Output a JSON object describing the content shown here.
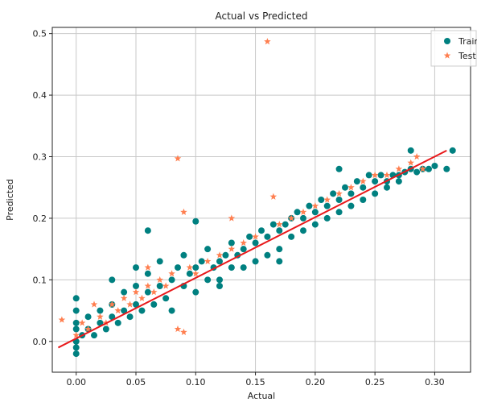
{
  "chart_data": {
    "type": "scatter",
    "title": "Actual vs Predicted",
    "xlabel": "Actual",
    "ylabel": "Predicted",
    "xlim": [
      -0.02,
      0.33
    ],
    "ylim": [
      -0.05,
      0.51
    ],
    "x_ticks": [
      "0.00",
      "0.05",
      "0.10",
      "0.15",
      "0.20",
      "0.25",
      "0.30"
    ],
    "x_tick_values": [
      0.0,
      0.05,
      0.1,
      0.15,
      0.2,
      0.25,
      0.3
    ],
    "y_ticks": [
      "0.0",
      "0.1",
      "0.2",
      "0.3",
      "0.4",
      "0.5"
    ],
    "y_tick_values": [
      0.0,
      0.1,
      0.2,
      0.3,
      0.4,
      0.5
    ],
    "grid": true,
    "legend_position": "top-right",
    "series": [
      {
        "name": "Train",
        "marker": "circle",
        "color": "#008080",
        "points": [
          [
            0.0,
            0.0
          ],
          [
            0.0,
            0.02
          ],
          [
            0.0,
            -0.02
          ],
          [
            0.0,
            0.05
          ],
          [
            0.0,
            0.07
          ],
          [
            0.0,
            -0.01
          ],
          [
            0.0,
            0.03
          ],
          [
            0.005,
            0.01
          ],
          [
            0.01,
            0.02
          ],
          [
            0.01,
            0.04
          ],
          [
            0.015,
            0.01
          ],
          [
            0.02,
            0.03
          ],
          [
            0.02,
            0.05
          ],
          [
            0.025,
            0.02
          ],
          [
            0.03,
            0.04
          ],
          [
            0.03,
            0.06
          ],
          [
            0.035,
            0.03
          ],
          [
            0.04,
            0.05
          ],
          [
            0.04,
            0.08
          ],
          [
            0.045,
            0.04
          ],
          [
            0.05,
            0.06
          ],
          [
            0.05,
            0.09
          ],
          [
            0.05,
            0.12
          ],
          [
            0.055,
            0.05
          ],
          [
            0.06,
            0.08
          ],
          [
            0.06,
            0.11
          ],
          [
            0.065,
            0.06
          ],
          [
            0.07,
            0.09
          ],
          [
            0.07,
            0.13
          ],
          [
            0.075,
            0.07
          ],
          [
            0.08,
            0.1
          ],
          [
            0.08,
            0.05
          ],
          [
            0.085,
            0.12
          ],
          [
            0.09,
            0.09
          ],
          [
            0.09,
            0.14
          ],
          [
            0.095,
            0.11
          ],
          [
            0.1,
            0.12
          ],
          [
            0.1,
            0.08
          ],
          [
            0.1,
            0.195
          ],
          [
            0.105,
            0.13
          ],
          [
            0.11,
            0.1
          ],
          [
            0.11,
            0.15
          ],
          [
            0.115,
            0.12
          ],
          [
            0.12,
            0.13
          ],
          [
            0.12,
            0.1
          ],
          [
            0.125,
            0.14
          ],
          [
            0.13,
            0.16
          ],
          [
            0.13,
            0.12
          ],
          [
            0.135,
            0.14
          ],
          [
            0.14,
            0.15
          ],
          [
            0.14,
            0.12
          ],
          [
            0.145,
            0.17
          ],
          [
            0.15,
            0.16
          ],
          [
            0.15,
            0.13
          ],
          [
            0.155,
            0.18
          ],
          [
            0.16,
            0.17
          ],
          [
            0.16,
            0.14
          ],
          [
            0.165,
            0.19
          ],
          [
            0.17,
            0.18
          ],
          [
            0.17,
            0.15
          ],
          [
            0.175,
            0.19
          ],
          [
            0.18,
            0.2
          ],
          [
            0.18,
            0.17
          ],
          [
            0.185,
            0.21
          ],
          [
            0.19,
            0.2
          ],
          [
            0.19,
            0.18
          ],
          [
            0.195,
            0.22
          ],
          [
            0.2,
            0.21
          ],
          [
            0.2,
            0.19
          ],
          [
            0.205,
            0.23
          ],
          [
            0.21,
            0.22
          ],
          [
            0.21,
            0.2
          ],
          [
            0.215,
            0.24
          ],
          [
            0.22,
            0.23
          ],
          [
            0.22,
            0.21
          ],
          [
            0.225,
            0.25
          ],
          [
            0.23,
            0.24
          ],
          [
            0.23,
            0.22
          ],
          [
            0.235,
            0.26
          ],
          [
            0.24,
            0.25
          ],
          [
            0.24,
            0.23
          ],
          [
            0.245,
            0.27
          ],
          [
            0.25,
            0.26
          ],
          [
            0.25,
            0.24
          ],
          [
            0.255,
            0.27
          ],
          [
            0.26,
            0.26
          ],
          [
            0.26,
            0.25
          ],
          [
            0.265,
            0.27
          ],
          [
            0.27,
            0.27
          ],
          [
            0.27,
            0.26
          ],
          [
            0.275,
            0.275
          ],
          [
            0.28,
            0.31
          ],
          [
            0.28,
            0.28
          ],
          [
            0.285,
            0.275
          ],
          [
            0.29,
            0.28
          ],
          [
            0.295,
            0.28
          ],
          [
            0.3,
            0.285
          ],
          [
            0.31,
            0.28
          ],
          [
            0.315,
            0.31
          ],
          [
            0.06,
            0.18
          ],
          [
            0.03,
            0.1
          ],
          [
            0.12,
            0.09
          ],
          [
            0.17,
            0.13
          ],
          [
            0.22,
            0.28
          ]
        ]
      },
      {
        "name": "Test",
        "marker": "star",
        "color": "#ff7f50",
        "points": [
          [
            -0.012,
            0.035
          ],
          [
            0.0,
            0.01
          ],
          [
            0.005,
            0.03
          ],
          [
            0.01,
            0.02
          ],
          [
            0.015,
            0.06
          ],
          [
            0.02,
            0.04
          ],
          [
            0.025,
            0.03
          ],
          [
            0.03,
            0.06
          ],
          [
            0.035,
            0.05
          ],
          [
            0.04,
            0.07
          ],
          [
            0.045,
            0.06
          ],
          [
            0.05,
            0.08
          ],
          [
            0.055,
            0.07
          ],
          [
            0.06,
            0.09
          ],
          [
            0.065,
            0.08
          ],
          [
            0.07,
            0.1
          ],
          [
            0.075,
            0.09
          ],
          [
            0.08,
            0.11
          ],
          [
            0.085,
            0.297
          ],
          [
            0.09,
            0.21
          ],
          [
            0.085,
            0.02
          ],
          [
            0.09,
            0.015
          ],
          [
            0.095,
            0.12
          ],
          [
            0.1,
            0.11
          ],
          [
            0.11,
            0.13
          ],
          [
            0.12,
            0.14
          ],
          [
            0.13,
            0.15
          ],
          [
            0.14,
            0.16
          ],
          [
            0.15,
            0.17
          ],
          [
            0.16,
            0.487
          ],
          [
            0.165,
            0.235
          ],
          [
            0.17,
            0.19
          ],
          [
            0.18,
            0.2
          ],
          [
            0.19,
            0.21
          ],
          [
            0.2,
            0.22
          ],
          [
            0.21,
            0.23
          ],
          [
            0.22,
            0.24
          ],
          [
            0.23,
            0.25
          ],
          [
            0.24,
            0.26
          ],
          [
            0.25,
            0.27
          ],
          [
            0.26,
            0.27
          ],
          [
            0.27,
            0.28
          ],
          [
            0.28,
            0.29
          ],
          [
            0.285,
            0.3
          ],
          [
            0.29,
            0.28
          ],
          [
            0.13,
            0.2
          ],
          [
            0.06,
            0.12
          ]
        ]
      }
    ],
    "fit_line": {
      "color": "#e8191b",
      "x": [
        -0.015,
        0.31
      ],
      "y": [
        -0.01,
        0.31
      ]
    }
  }
}
